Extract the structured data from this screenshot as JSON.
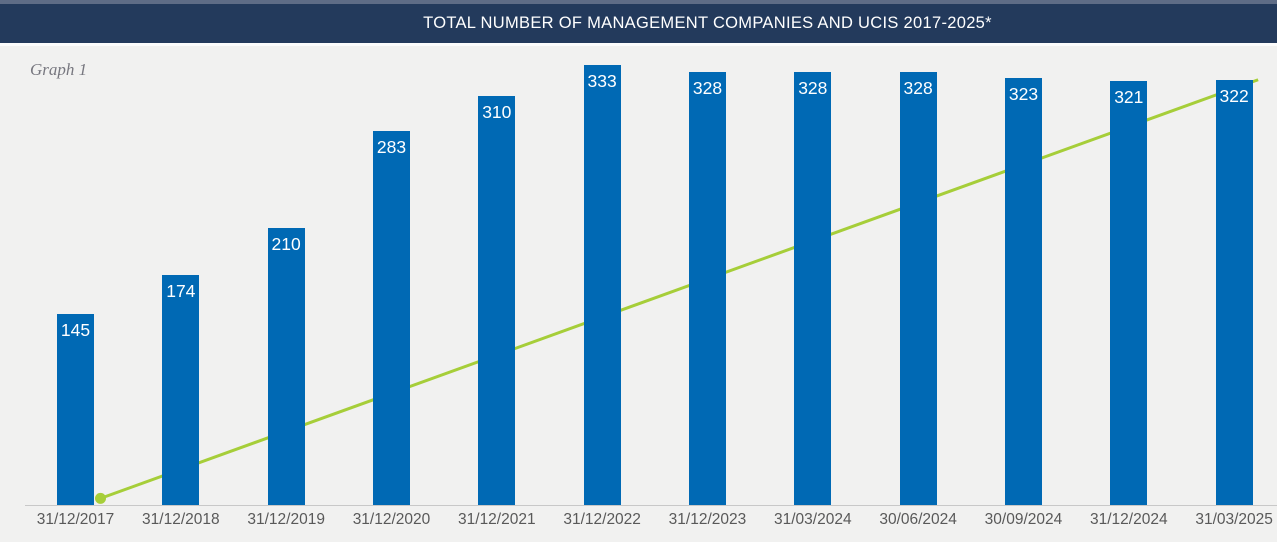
{
  "graph_label": "Graph 1",
  "chart_data": {
    "type": "bar",
    "title": "TOTAL NUMBER OF MANAGEMENT COMPANIES AND UCIS 2017-2025*",
    "categories": [
      "31/12/2017",
      "31/12/2018",
      "31/12/2019",
      "31/12/2020",
      "31/12/2021",
      "31/12/2022",
      "31/12/2023",
      "31/03/2024",
      "30/06/2024",
      "30/09/2024",
      "31/12/2024",
      "31/03/2025"
    ],
    "values": [
      145,
      174,
      210,
      283,
      310,
      333,
      328,
      328,
      328,
      323,
      321,
      322
    ],
    "ylim": [
      0,
      340
    ],
    "grid": false,
    "legend": false,
    "data_labels": "inside-top",
    "colors": {
      "bar": "#0069B4",
      "value_label": "#FFFFFF",
      "axis_label": "#595959",
      "axis_line": "#C8C8C8",
      "background": "#F1F1F0",
      "title_bar": "#233A5C",
      "title_text": "#FFFFFF",
      "trend_line": "#A6CE39"
    },
    "trend_line": {
      "color": "#A6CE39",
      "start": {
        "category_index": 0,
        "value": 5
      },
      "end": {
        "category_index": 11,
        "value": 322
      },
      "marker_at_start": true
    }
  }
}
